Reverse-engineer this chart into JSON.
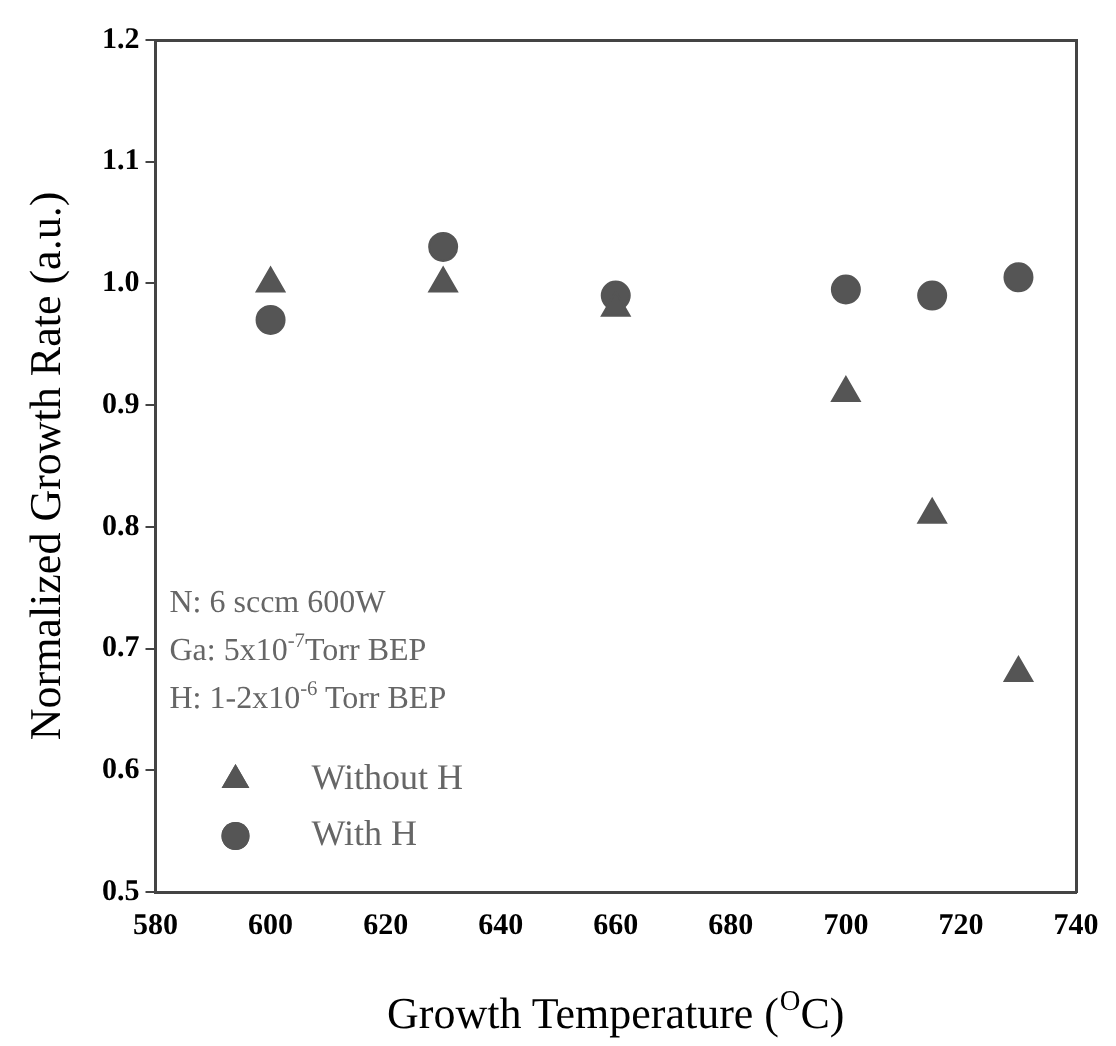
{
  "chart_data": {
    "type": "scatter",
    "xlabel": "Growth Temperature ($^{O}$C)",
    "ylabel": "Normalized Growth Rate (a.u.)",
    "x": [
      600,
      630,
      660,
      700,
      715,
      730
    ],
    "series": [
      {
        "name": "Without H",
        "color": "#555555",
        "marker": "triangle",
        "values": [
          1.0,
          1.0,
          0.98,
          0.91,
          0.81,
          0.68
        ]
      },
      {
        "name": "With H",
        "color": "#555555",
        "marker": "circle",
        "values": [
          0.97,
          1.03,
          0.99,
          0.995,
          0.99,
          1.005
        ]
      }
    ],
    "xlim": [
      580,
      740
    ],
    "xticks": [
      580,
      600,
      620,
      640,
      660,
      680,
      700,
      720,
      740
    ],
    "ylim": [
      0.5,
      1.2
    ],
    "yticks": [
      0.5,
      0.6,
      0.7,
      0.8,
      0.9,
      {
        "value": 1,
        "label": "1.0"
      },
      1.1,
      1.2
    ],
    "annotations": [
      "N: 6 sccm 600W",
      "Ga: 5x10$^{-7}$Torr BEP",
      "H: 1-2x10$^{-6}$ Torr BEP"
    ],
    "grid": false,
    "legend": "bottom left"
  }
}
